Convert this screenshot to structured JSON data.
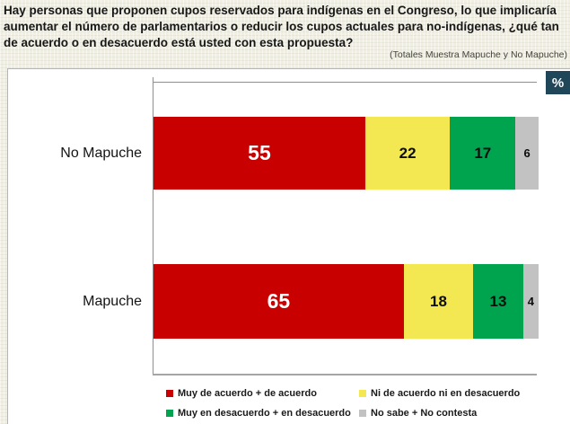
{
  "header": {
    "question": "Hay personas que proponen cupos reservados para indígenas en el Congreso, lo que implicaría aumentar el número de parlamentarios o reducir los cupos actuales para no-indígenas, ¿qué tan de acuerdo o en desacuerdo está usted con esta propuesta?",
    "subtitle": "(Totales Muestra Mapuche y No Mapuche)",
    "unit_label": "%"
  },
  "chart_data": {
    "type": "bar",
    "orientation": "horizontal",
    "stacked": true,
    "categories": [
      "No Mapuche",
      "Mapuche"
    ],
    "series": [
      {
        "name": "Muy de acuerdo + de acuerdo",
        "color": "#c80000",
        "values": [
          55,
          65
        ]
      },
      {
        "name": "Ni de acuerdo ni en desacuerdo",
        "color": "#f3e851",
        "values": [
          22,
          18
        ]
      },
      {
        "name": "Muy en desacuerdo + en desacuerdo",
        "color": "#00a44e",
        "values": [
          17,
          13
        ]
      },
      {
        "name": "No sabe + No contesta",
        "color": "#c2c2c2",
        "values": [
          6,
          4
        ]
      }
    ],
    "xlim": [
      0,
      100
    ],
    "value_labels": true,
    "legend_position": "bottom",
    "grid": false
  },
  "colors": {
    "background": "#f0efe2",
    "panel": "#ffffff",
    "badge_bg": "#1f4659",
    "axis": "#8f8f8f"
  }
}
